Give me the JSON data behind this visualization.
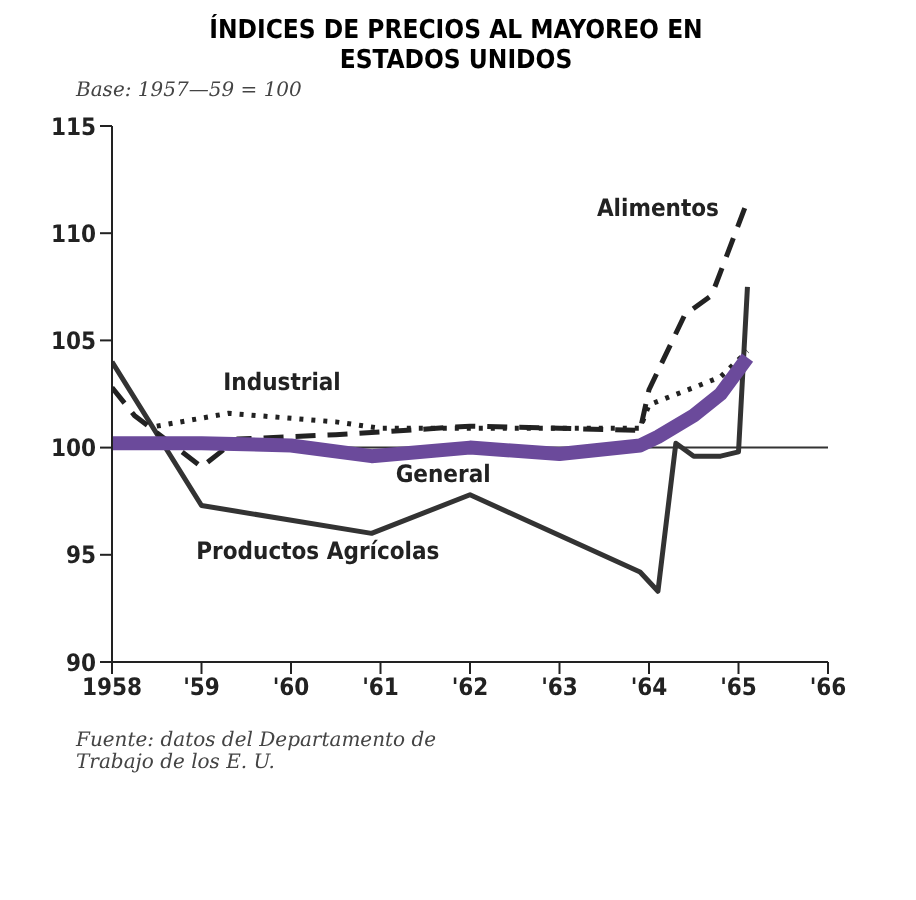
{
  "chart_data": {
    "type": "line",
    "title": "ÍNDICES DE PRECIOS AL MAYOREO EN ESTADOS UNIDOS",
    "subtitle": "Base: 1957—59 = 100",
    "annotations": [
      "Fuente: datos del Departamento de Trabajo de los E. U."
    ],
    "xlim": [
      1958,
      1966
    ],
    "xticks": [
      1958,
      {
        "value": 1959,
        "label": "'59"
      },
      {
        "value": 1960,
        "label": "'60"
      },
      {
        "value": 1961,
        "label": "'61"
      },
      {
        "value": 1962,
        "label": "'62"
      },
      {
        "value": 1963,
        "label": "'63"
      },
      {
        "value": 1964,
        "label": "'64"
      },
      {
        "value": 1965,
        "label": "'65"
      },
      {
        "value": 1966,
        "label": "'66"
      }
    ],
    "ylim": [
      90,
      115
    ],
    "yticks": [
      90,
      95,
      100,
      105,
      110,
      115
    ],
    "marker": "none",
    "ref_lines": [
      {
        "axis": "y",
        "value": 100,
        "color": "#333333"
      }
    ],
    "series": [
      {
        "name": "Productos Agrícolas",
        "color": "#333333",
        "line_style": "solid",
        "x": [
          1958,
          1959,
          1960.9,
          1962,
          1963.9,
          1964.1,
          1964.3,
          1964.5,
          1964.8,
          1965.0,
          1965.1
        ],
        "values": [
          104,
          97.3,
          96,
          97.8,
          94.2,
          93.3,
          100.2,
          99.6,
          99.6,
          99.8,
          107.5
        ]
      },
      {
        "name": "Alimentos",
        "color": "#222222",
        "line_style": "dashed",
        "x": [
          1958,
          1958.25,
          1959,
          1959.4,
          1960.5,
          1962,
          1963,
          1963.9,
          1964,
          1964.4,
          1964.7,
          1965.1
        ],
        "values": [
          102.8,
          101.5,
          99.1,
          100.4,
          100.6,
          101,
          100.9,
          100.8,
          102.7,
          106.2,
          107.1,
          111.5
        ]
      },
      {
        "name": "Industrial",
        "color": "#222222",
        "line_style": "dotted",
        "x": [
          1958.5,
          1959.3,
          1960.5,
          1961,
          1963.9,
          1964,
          1964.5,
          1964.8,
          1965.1
        ],
        "values": [
          101,
          101.6,
          101.2,
          100.9,
          100.9,
          102,
          102.8,
          103.3,
          104.5
        ]
      },
      {
        "name": "General",
        "color": "#6b4a9b",
        "line_style": "solid",
        "x": [
          1958,
          1959,
          1960,
          1960.9,
          1962,
          1963,
          1963.9,
          1964.1,
          1964.5,
          1964.8,
          1965.1
        ],
        "values": [
          100.2,
          100.2,
          100.1,
          99.6,
          100,
          99.7,
          100.1,
          100.5,
          101.5,
          102.5,
          104.2
        ]
      }
    ]
  }
}
